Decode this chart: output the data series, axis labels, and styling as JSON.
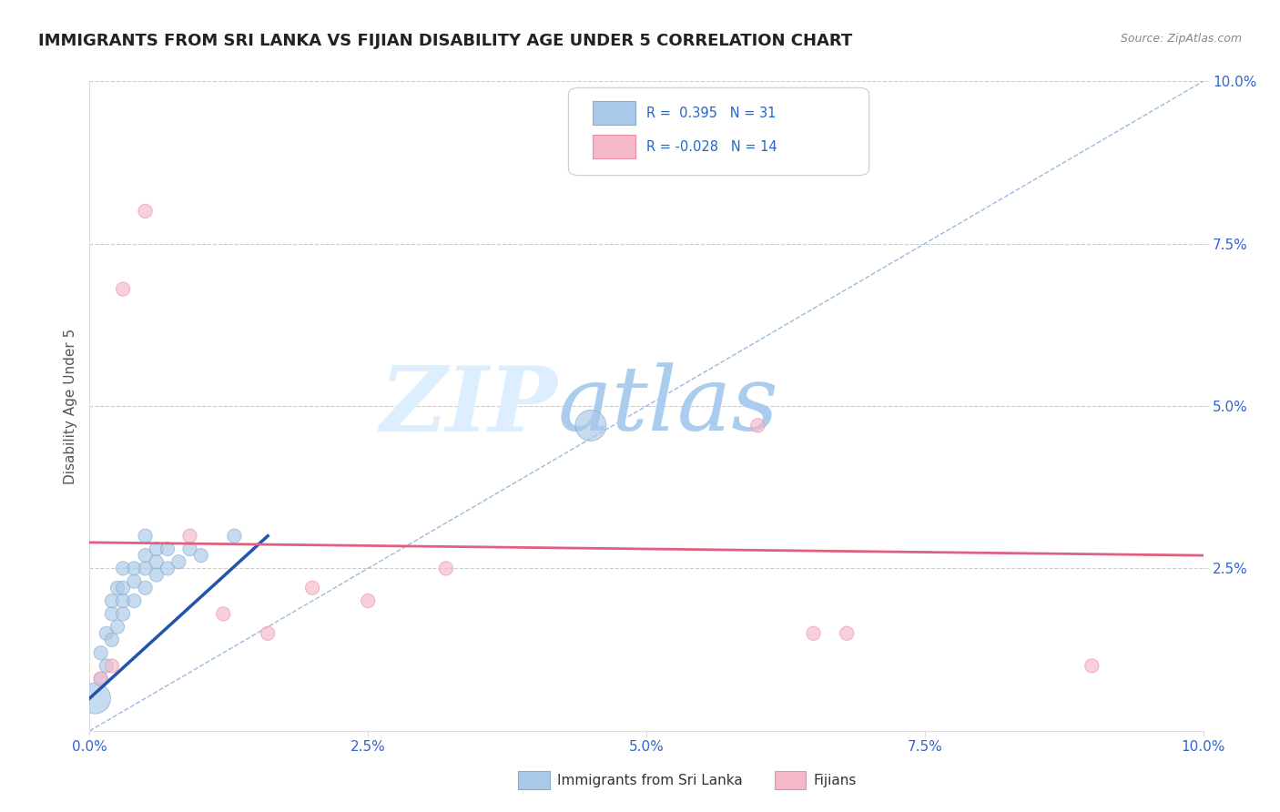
{
  "title": "IMMIGRANTS FROM SRI LANKA VS FIJIAN DISABILITY AGE UNDER 5 CORRELATION CHART",
  "source": "Source: ZipAtlas.com",
  "ylabel": "Disability Age Under 5",
  "xlim": [
    0.0,
    0.1
  ],
  "ylim": [
    0.0,
    0.1
  ],
  "xticks": [
    0.0,
    0.025,
    0.05,
    0.075,
    0.1
  ],
  "yticks": [
    0.025,
    0.05,
    0.075,
    0.1
  ],
  "xticklabels": [
    "0.0%",
    "2.5%",
    "5.0%",
    "7.5%",
    "10.0%"
  ],
  "yticklabels": [
    "2.5%",
    "5.0%",
    "7.5%",
    "10.0%"
  ],
  "background_color": "#ffffff",
  "grid_color": "#cccccc",
  "series_blue": {
    "name": "Immigrants from Sri Lanka",
    "R": "0.395",
    "N": "31",
    "color": "#aac8e8",
    "edge_color": "#88aacc",
    "x": [
      0.0005,
      0.001,
      0.001,
      0.0015,
      0.0015,
      0.002,
      0.002,
      0.002,
      0.0025,
      0.0025,
      0.003,
      0.003,
      0.003,
      0.003,
      0.004,
      0.004,
      0.004,
      0.005,
      0.005,
      0.005,
      0.005,
      0.006,
      0.006,
      0.006,
      0.007,
      0.007,
      0.008,
      0.009,
      0.01,
      0.013,
      0.045
    ],
    "y": [
      0.005,
      0.008,
      0.012,
      0.01,
      0.015,
      0.014,
      0.018,
      0.02,
      0.016,
      0.022,
      0.018,
      0.02,
      0.022,
      0.025,
      0.02,
      0.023,
      0.025,
      0.022,
      0.025,
      0.027,
      0.03,
      0.024,
      0.026,
      0.028,
      0.025,
      0.028,
      0.026,
      0.028,
      0.027,
      0.03,
      0.047
    ]
  },
  "series_pink": {
    "name": "Fijians",
    "R": "-0.028",
    "N": "14",
    "color": "#f5b8c8",
    "edge_color": "#e890a0",
    "x": [
      0.001,
      0.002,
      0.003,
      0.005,
      0.009,
      0.012,
      0.016,
      0.02,
      0.025,
      0.032,
      0.06,
      0.065,
      0.068,
      0.09
    ],
    "y": [
      0.008,
      0.01,
      0.068,
      0.08,
      0.03,
      0.018,
      0.015,
      0.022,
      0.02,
      0.025,
      0.047,
      0.015,
      0.015,
      0.01
    ]
  },
  "blue_trend_start_x": 0.0,
  "blue_trend_start_y": 0.005,
  "blue_trend_end_x": 0.016,
  "blue_trend_end_y": 0.03,
  "pink_trend_start_x": 0.0,
  "pink_trend_start_y": 0.029,
  "pink_trend_end_x": 0.1,
  "pink_trend_end_y": 0.027,
  "blue_trend_color": "#2255aa",
  "pink_trend_color": "#e06080",
  "diag_color": "#99bbdd",
  "watermark_zip": "ZIP",
  "watermark_atlas": "atlas",
  "watermark_color_zip": "#ddeeff",
  "watermark_color_atlas": "#aaccee",
  "legend_box_color": "#ffffff",
  "legend_border_color": "#cccccc",
  "tick_color": "#3366cc",
  "ylabel_color": "#555555",
  "title_color": "#222222",
  "source_color": "#888888",
  "scatter_size": 120,
  "scatter_alpha": 0.65,
  "large_dot_size": 600
}
